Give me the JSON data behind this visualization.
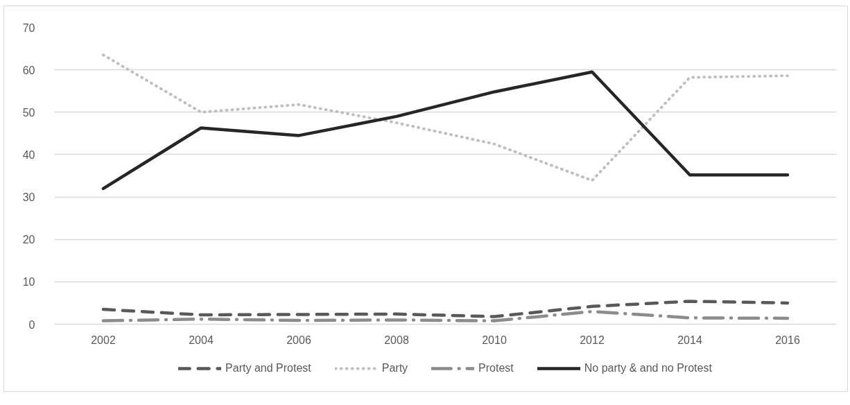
{
  "chart_data": {
    "type": "line",
    "categories": [
      "2002",
      "2004",
      "2006",
      "2008",
      "2010",
      "2012",
      "2014",
      "2016"
    ],
    "series": [
      {
        "name": "Party and Protest",
        "color": "#595959",
        "line_style": "dashed",
        "values": [
          3.5,
          2.2,
          2.3,
          2.4,
          1.8,
          4.2,
          5.4,
          5.0
        ]
      },
      {
        "name": "Party",
        "color": "#bfbfbf",
        "line_style": "dotted",
        "values": [
          63.5,
          50.0,
          51.8,
          47.5,
          42.5,
          33.9,
          58.2,
          58.6
        ]
      },
      {
        "name": "Protest",
        "color": "#8c8c8c",
        "line_style": "dashdot",
        "values": [
          0.8,
          1.2,
          0.9,
          1.0,
          0.8,
          3.0,
          1.5,
          1.4
        ]
      },
      {
        "name": "No party & and no Protest",
        "color": "#262626",
        "line_style": "solid",
        "values": [
          32.0,
          46.3,
          44.5,
          49.0,
          54.8,
          59.5,
          35.2,
          35.2
        ]
      }
    ],
    "ylim": [
      0,
      70
    ],
    "yticks": [
      0,
      10,
      20,
      30,
      40,
      50,
      60,
      70
    ],
    "grid": "y",
    "legend": "bottom"
  }
}
